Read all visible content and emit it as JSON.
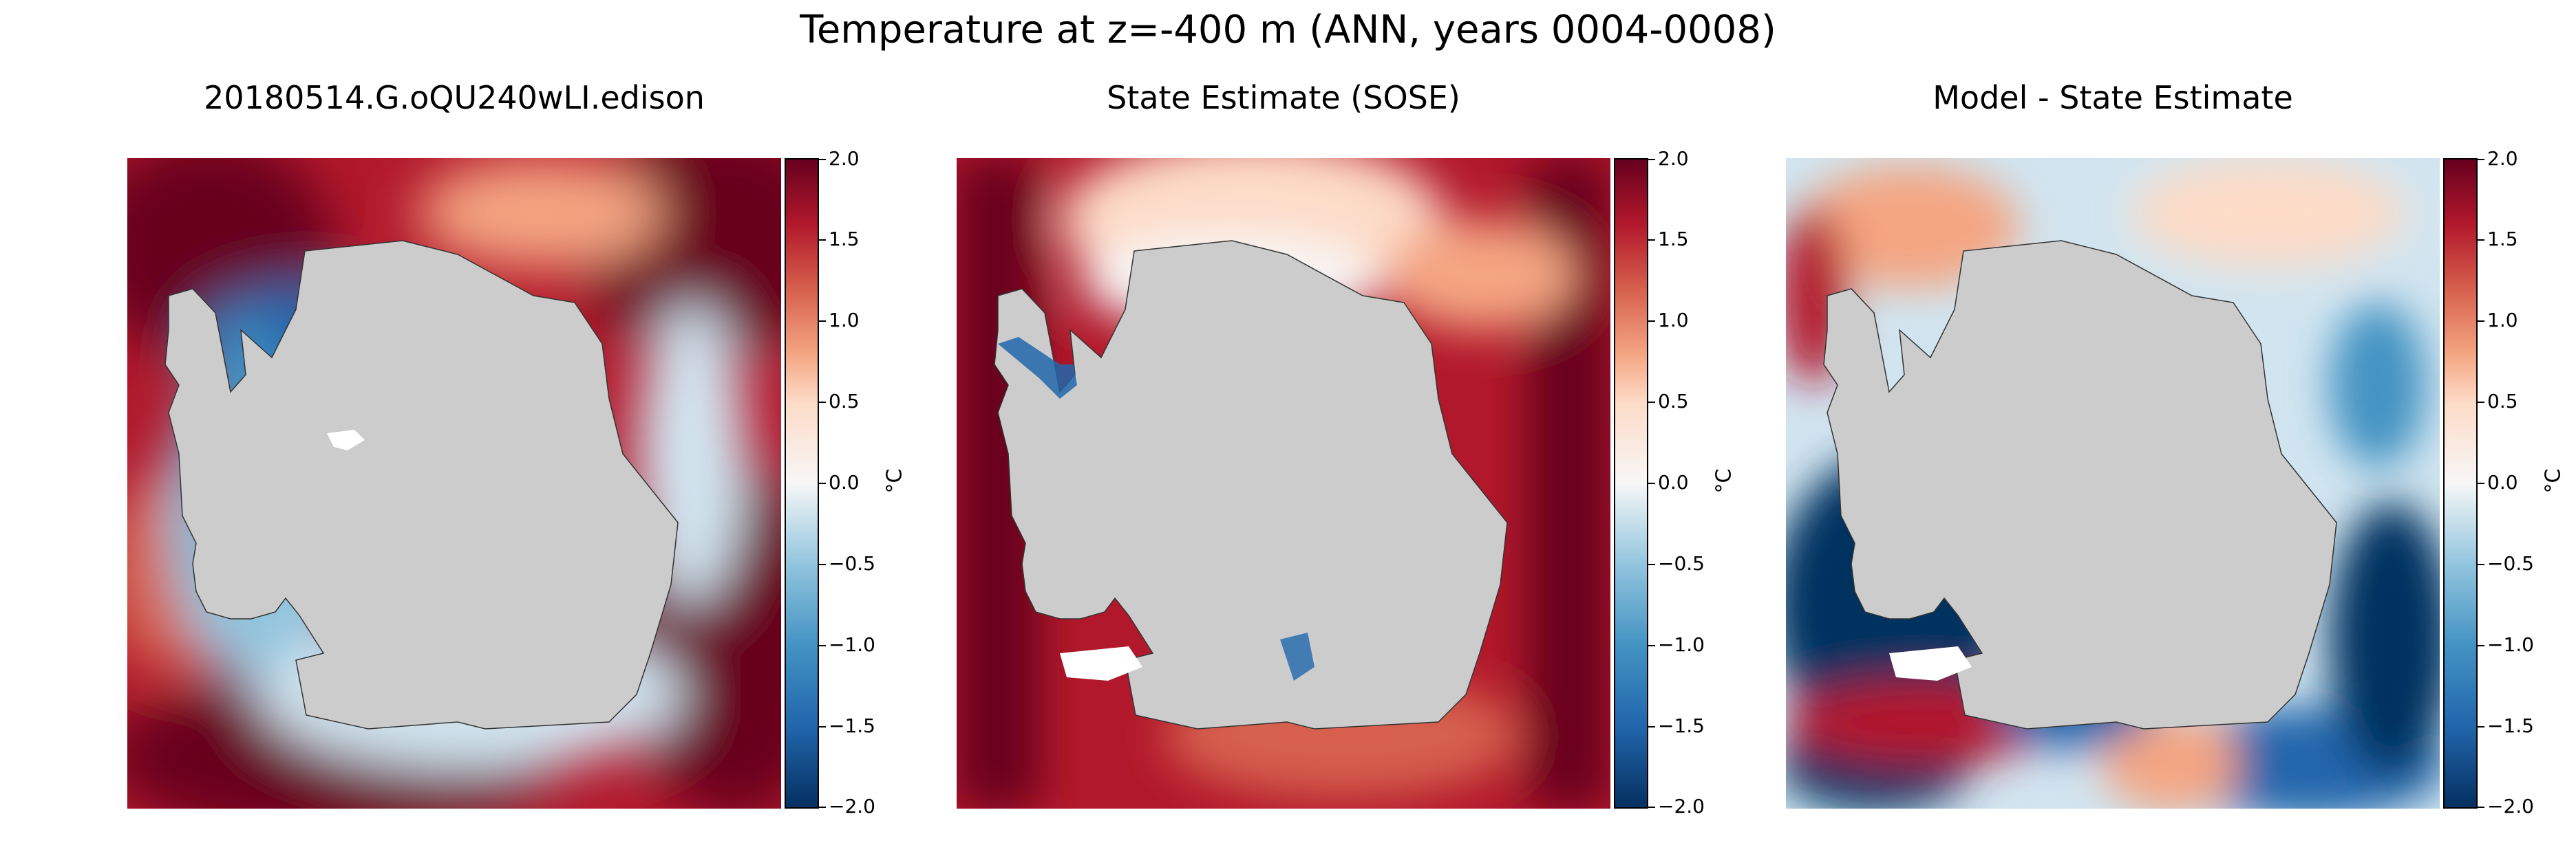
{
  "figure": {
    "suptitle": "Temperature at z=-400 m (ANN, years 0004-0008)"
  },
  "chart_data": [
    {
      "type": "heatmap",
      "title": "20180514.G.oQU240wLI.edison",
      "colorbar": {
        "label": "°C",
        "range": [
          -2.0,
          2.0
        ],
        "ticks": [
          "2.0",
          "1.5",
          "1.0",
          "0.5",
          "0.0",
          "−0.5",
          "−1.0",
          "−1.5",
          "−2.0"
        ],
        "colormap": "RdBu_r"
      },
      "pattern": "model"
    },
    {
      "type": "heatmap",
      "title": "State Estimate (SOSE)",
      "colorbar": {
        "label": "°C",
        "range": [
          -2.0,
          2.0
        ],
        "ticks": [
          "2.0",
          "1.5",
          "1.0",
          "0.5",
          "0.0",
          "−0.5",
          "−1.0",
          "−1.5",
          "−2.0"
        ],
        "colormap": "RdBu_r"
      },
      "pattern": "obs"
    },
    {
      "type": "heatmap",
      "title": "Model - State Estimate",
      "colorbar": {
        "label": "°C",
        "range": [
          -2.0,
          2.0
        ],
        "ticks": [
          "2.0",
          "1.5",
          "1.0",
          "0.5",
          "0.0",
          "−0.5",
          "−1.0",
          "−1.5",
          "−2.0"
        ],
        "colormap": "RdBu_r"
      },
      "pattern": "diff"
    }
  ],
  "colors": {
    "land": "#cccccc",
    "deep_red": "#67001f",
    "red": "#b2182b",
    "light_red": "#f4a582",
    "white": "#f7f7f7",
    "light_blue": "#92c5de",
    "blue": "#2166ac",
    "deep_blue": "#053061"
  }
}
